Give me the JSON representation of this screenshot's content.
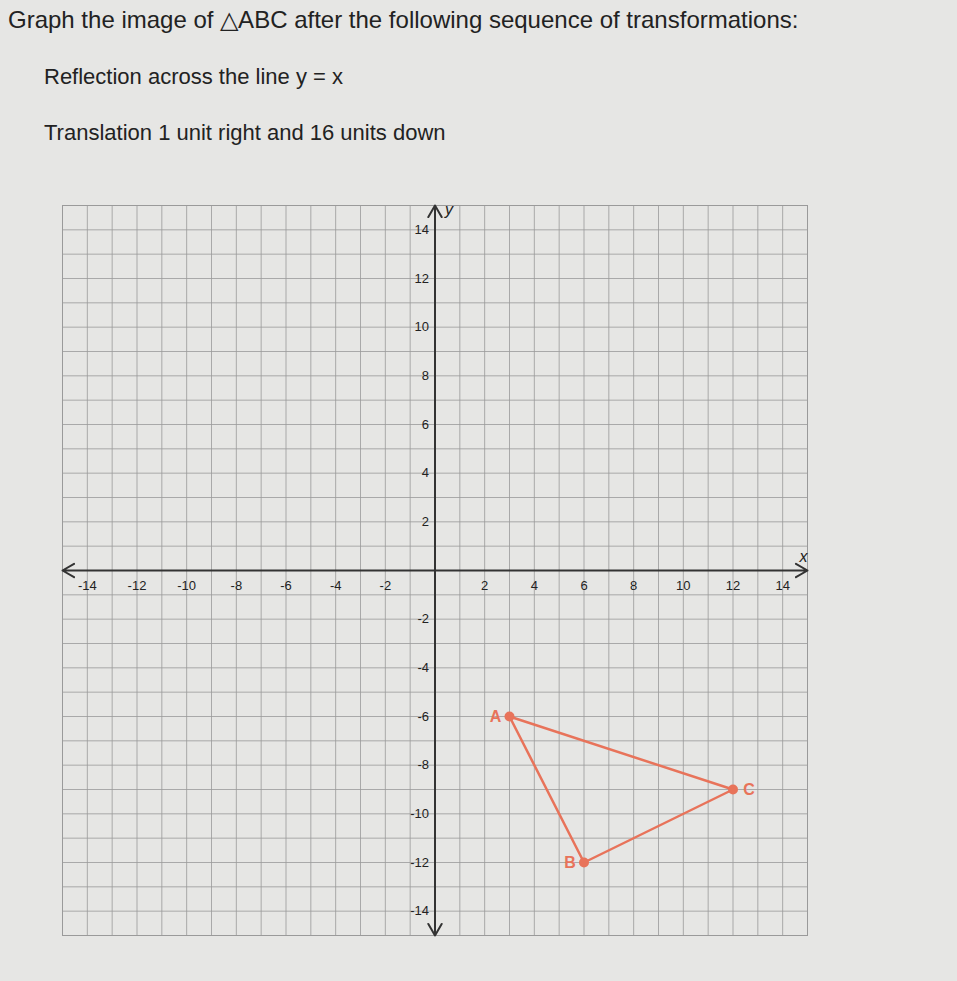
{
  "chart_data": {
    "type": "polygon",
    "title": "Graph the image of △ABC after the following sequence of transformations:",
    "instructions": [
      "Reflection across the line y = x",
      "Translation 1 unit right and 16 units down"
    ],
    "x_label": "x",
    "y_label": "y",
    "points": [
      {
        "label": "A",
        "x": 3,
        "y": -6
      },
      {
        "label": "B",
        "x": 6,
        "y": -12
      },
      {
        "label": "C",
        "x": 12,
        "y": -9
      }
    ],
    "color": "#e8735a",
    "xlim": [
      -15,
      15
    ],
    "ylim": [
      -15,
      15
    ],
    "xticks": [
      -14,
      -12,
      -10,
      -8,
      -6,
      -4,
      -2,
      2,
      4,
      6,
      8,
      10,
      12,
      14
    ],
    "yticks": [
      -14,
      -12,
      -10,
      -8,
      -6,
      -4,
      -2,
      2,
      4,
      6,
      8,
      10,
      12,
      14
    ],
    "grid": true
  }
}
